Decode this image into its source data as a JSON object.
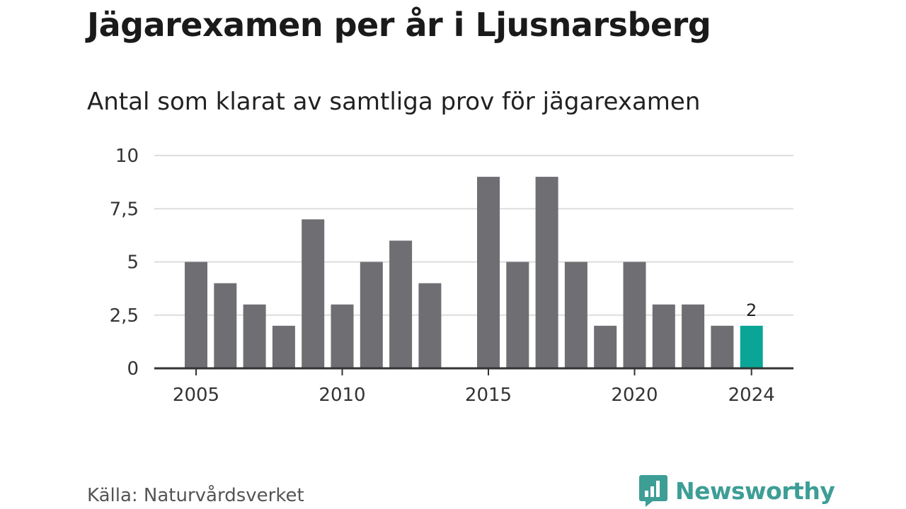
{
  "header": {
    "title": "Jägarexamen per år i Ljusnarsberg",
    "subtitle": "Antal som klarat av samtliga prov för jägarexamen"
  },
  "footer": {
    "source": "Källa: Naturvårdsverket",
    "brand": "Newsworthy",
    "brand_icon": "bar-chart-speech-bubble-icon"
  },
  "colors": {
    "bar": "#6f6e73",
    "highlight": "#0aa596",
    "grid": "#dddddd",
    "axis": "#333333",
    "brand": "#3d9e96"
  },
  "chart_data": {
    "type": "bar",
    "title": "Jägarexamen per år i Ljusnarsberg",
    "subtitle": "Antal som klarat av samtliga prov för jägarexamen",
    "xlabel": "",
    "ylabel": "",
    "categories": [
      2005,
      2006,
      2007,
      2008,
      2009,
      2010,
      2011,
      2012,
      2013,
      2014,
      2015,
      2016,
      2017,
      2018,
      2019,
      2020,
      2021,
      2022,
      2023,
      2024
    ],
    "values": [
      5,
      4,
      3,
      2,
      7,
      3,
      5,
      6,
      4,
      0,
      9,
      5,
      9,
      5,
      2,
      5,
      3,
      3,
      2,
      2
    ],
    "highlight_category": 2024,
    "data_labels": [
      {
        "category": 2024,
        "text": "2"
      }
    ],
    "ylim": [
      0,
      10
    ],
    "y_ticks": [
      0,
      2.5,
      5,
      7.5,
      10
    ],
    "y_tick_labels": [
      "0",
      "2,5",
      "5",
      "7,5",
      "10"
    ],
    "x_tick_labels": [
      "2005",
      "2010",
      "2015",
      "2020",
      "2024"
    ],
    "grid": true,
    "legend": "none"
  }
}
